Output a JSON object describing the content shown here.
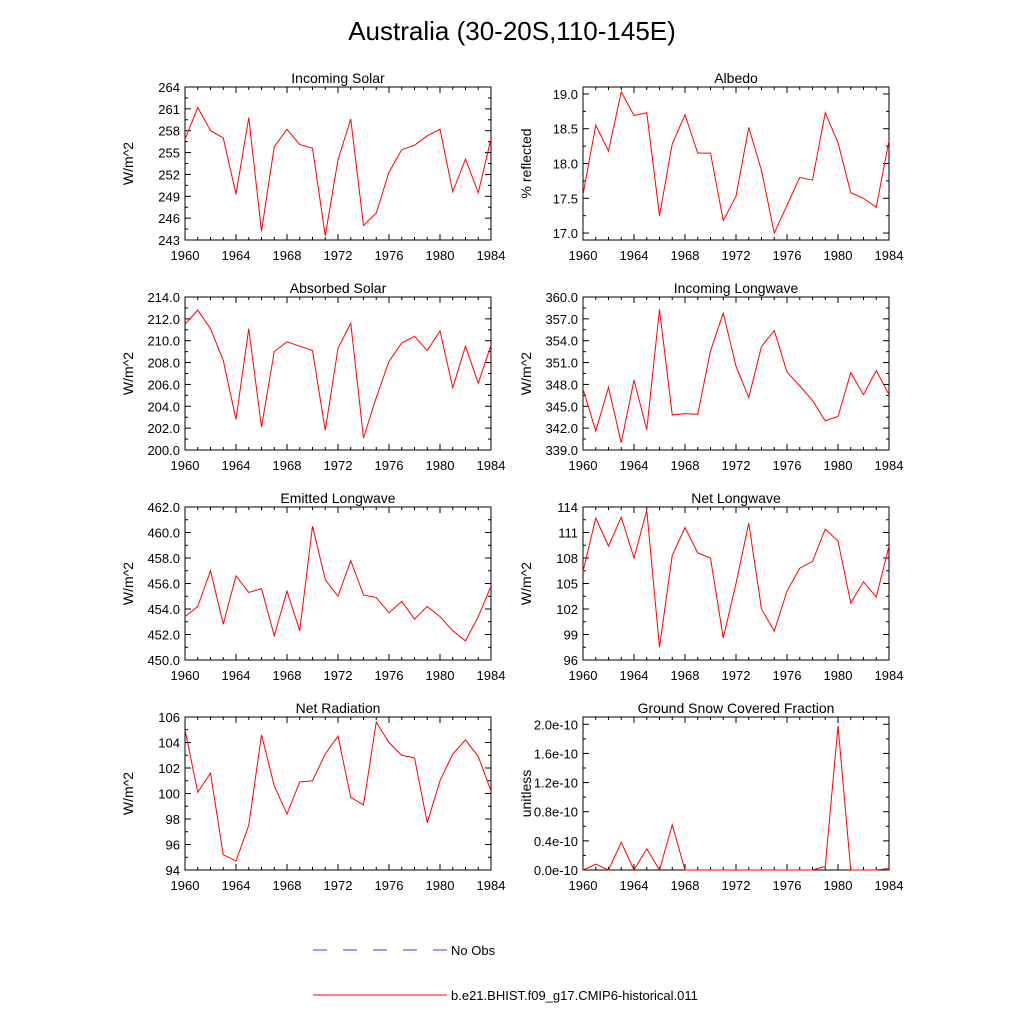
{
  "title": "Australia (30-20S,110-145E)",
  "legend": {
    "obs_label": "No Obs",
    "model_label": "b.e21.BHIST.f09_g17.CMIP6-historical.011",
    "obs_color": "#3b3bd6",
    "model_color": "#ff0000"
  },
  "chart_data": [
    {
      "type": "line",
      "title": "Incoming Solar",
      "ylabel": "W/m^2",
      "xlim": [
        1960,
        1984
      ],
      "ylim": [
        243,
        264
      ],
      "xticks": [
        "1960",
        "1964",
        "1968",
        "1972",
        "1976",
        "1980",
        "1984"
      ],
      "yticks": [
        "243",
        "246",
        "249",
        "252",
        "255",
        "258",
        "261",
        "264"
      ],
      "x": [
        1960,
        1961,
        1962,
        1963,
        1964,
        1965,
        1966,
        1967,
        1968,
        1969,
        1970,
        1971,
        1972,
        1973,
        1974,
        1975,
        1976,
        1977,
        1978,
        1979,
        1980,
        1981,
        1982,
        1983,
        1984
      ],
      "series": [
        {
          "values": [
            256.8,
            261.2,
            258.0,
            257.0,
            249.3,
            259.8,
            244.2,
            255.8,
            258.2,
            256.1,
            255.6,
            243.6,
            254.0,
            259.6,
            245.0,
            246.7,
            252.3,
            255.4,
            256.0,
            257.3,
            258.2,
            249.6,
            254.1,
            249.5,
            256.9
          ]
        }
      ]
    },
    {
      "type": "line",
      "title": "Albedo",
      "ylabel": "% reflected",
      "xlim": [
        1960,
        1984
      ],
      "ylim": [
        16.9,
        19.1
      ],
      "xticks": [
        "1960",
        "1964",
        "1968",
        "1972",
        "1976",
        "1980",
        "1984"
      ],
      "yticks": [
        "17.0",
        "17.5",
        "18.0",
        "18.5",
        "19.0"
      ],
      "x": [
        1960,
        1961,
        1962,
        1963,
        1964,
        1965,
        1966,
        1967,
        1968,
        1969,
        1970,
        1971,
        1972,
        1973,
        1974,
        1975,
        1976,
        1977,
        1978,
        1979,
        1980,
        1981,
        1982,
        1983,
        1984
      ],
      "series": [
        {
          "values": [
            17.55,
            18.55,
            18.18,
            19.03,
            18.69,
            18.73,
            17.25,
            18.28,
            18.7,
            18.15,
            18.15,
            17.18,
            17.53,
            18.52,
            17.9,
            17.0,
            17.4,
            17.8,
            17.76,
            18.73,
            18.3,
            17.58,
            17.5,
            17.37,
            18.33
          ]
        }
      ]
    },
    {
      "type": "line",
      "title": "Absorbed Solar",
      "ylabel": "W/m^2",
      "xlim": [
        1960,
        1984
      ],
      "ylim": [
        200,
        214
      ],
      "xticks": [
        "1960",
        "1964",
        "1968",
        "1972",
        "1976",
        "1980",
        "1984"
      ],
      "yticks": [
        "200.0",
        "202.0",
        "204.0",
        "206.0",
        "208.0",
        "210.0",
        "212.0",
        "214.0"
      ],
      "x": [
        1960,
        1961,
        1962,
        1963,
        1964,
        1965,
        1966,
        1967,
        1968,
        1969,
        1970,
        1971,
        1972,
        1973,
        1974,
        1975,
        1976,
        1977,
        1978,
        1979,
        1980,
        1981,
        1982,
        1983,
        1984
      ],
      "series": [
        {
          "values": [
            211.5,
            212.8,
            211.1,
            208.2,
            202.8,
            211.1,
            202.1,
            209.0,
            209.9,
            209.5,
            209.1,
            201.8,
            209.3,
            211.6,
            201.1,
            204.8,
            208.1,
            209.8,
            210.4,
            209.1,
            210.9,
            205.7,
            209.5,
            206.1,
            209.6
          ]
        }
      ]
    },
    {
      "type": "line",
      "title": "Incoming Longwave",
      "ylabel": "W/m^2",
      "xlim": [
        1960,
        1984
      ],
      "ylim": [
        339,
        360
      ],
      "xticks": [
        "1960",
        "1964",
        "1968",
        "1972",
        "1976",
        "1980",
        "1984"
      ],
      "yticks": [
        "339.0",
        "342.0",
        "345.0",
        "348.0",
        "351.0",
        "354.0",
        "357.0",
        "360.0"
      ],
      "x": [
        1960,
        1961,
        1962,
        1963,
        1964,
        1965,
        1966,
        1967,
        1968,
        1969,
        1970,
        1971,
        1972,
        1973,
        1974,
        1975,
        1976,
        1977,
        1978,
        1979,
        1980,
        1981,
        1982,
        1983,
        1984
      ],
      "series": [
        {
          "values": [
            347.4,
            341.6,
            347.6,
            340.0,
            348.6,
            341.8,
            358.3,
            343.8,
            344.0,
            343.9,
            352.6,
            357.8,
            350.5,
            346.2,
            353.2,
            355.4,
            349.7,
            347.8,
            345.8,
            343.0,
            343.6,
            349.6,
            346.6,
            349.9,
            346.6
          ]
        }
      ]
    },
    {
      "type": "line",
      "title": "Emitted Longwave",
      "ylabel": "W/m^2",
      "xlim": [
        1960,
        1984
      ],
      "ylim": [
        450,
        462
      ],
      "xticks": [
        "1960",
        "1964",
        "1968",
        "1972",
        "1976",
        "1980",
        "1984"
      ],
      "yticks": [
        "450.0",
        "452.0",
        "454.0",
        "456.0",
        "458.0",
        "460.0",
        "462.0"
      ],
      "x": [
        1960,
        1961,
        1962,
        1963,
        1964,
        1965,
        1966,
        1967,
        1968,
        1969,
        1970,
        1971,
        1972,
        1973,
        1974,
        1975,
        1976,
        1977,
        1978,
        1979,
        1980,
        1981,
        1982,
        1983,
        1984
      ],
      "series": [
        {
          "values": [
            453.4,
            454.2,
            457.0,
            452.8,
            456.6,
            455.3,
            455.6,
            451.9,
            455.4,
            452.3,
            460.5,
            456.3,
            455.0,
            457.8,
            455.1,
            454.9,
            453.7,
            454.6,
            453.2,
            454.2,
            453.4,
            452.3,
            451.5,
            453.4,
            455.8
          ]
        }
      ]
    },
    {
      "type": "line",
      "title": "Net Longwave",
      "ylabel": "W/m^2",
      "xlim": [
        1960,
        1984
      ],
      "ylim": [
        96,
        114
      ],
      "xticks": [
        "1960",
        "1964",
        "1968",
        "1972",
        "1976",
        "1980",
        "1984"
      ],
      "yticks": [
        "96",
        "99",
        "102",
        "105",
        "108",
        "111",
        "114"
      ],
      "x": [
        1960,
        1961,
        1962,
        1963,
        1964,
        1965,
        1966,
        1967,
        1968,
        1969,
        1970,
        1971,
        1972,
        1973,
        1974,
        1975,
        1976,
        1977,
        1978,
        1979,
        1980,
        1981,
        1982,
        1983,
        1984
      ],
      "series": [
        {
          "values": [
            106.4,
            112.7,
            109.4,
            112.8,
            108.0,
            113.6,
            97.5,
            108.3,
            111.6,
            108.6,
            108.0,
            98.6,
            105.0,
            112.1,
            102.0,
            99.4,
            104.1,
            106.8,
            107.6,
            111.4,
            110.0,
            102.7,
            105.2,
            103.4,
            109.4
          ]
        }
      ]
    },
    {
      "type": "line",
      "title": "Net Radiation",
      "ylabel": "W/m^2",
      "xlim": [
        1960,
        1984
      ],
      "ylim": [
        94,
        106
      ],
      "xticks": [
        "1960",
        "1964",
        "1968",
        "1972",
        "1976",
        "1980",
        "1984"
      ],
      "yticks": [
        "94",
        "96",
        "98",
        "100",
        "102",
        "104",
        "106"
      ],
      "x": [
        1960,
        1961,
        1962,
        1963,
        1964,
        1965,
        1966,
        1967,
        1968,
        1969,
        1970,
        1971,
        1972,
        1973,
        1974,
        1975,
        1976,
        1977,
        1978,
        1979,
        1980,
        1981,
        1982,
        1983,
        1984
      ],
      "series": [
        {
          "values": [
            105.0,
            100.1,
            101.6,
            95.2,
            94.7,
            97.5,
            104.6,
            100.6,
            98.4,
            100.9,
            101.0,
            103.1,
            104.5,
            99.7,
            99.1,
            105.6,
            104.0,
            103.0,
            102.8,
            97.7,
            101.0,
            103.1,
            104.2,
            102.9,
            100.2
          ]
        }
      ]
    },
    {
      "type": "line",
      "title": "Ground Snow Covered Fraction",
      "ylabel": "unitless",
      "xlim": [
        1960,
        1984
      ],
      "ylim": [
        0,
        2.1e-10
      ],
      "xticks": [
        "1960",
        "1964",
        "1968",
        "1972",
        "1976",
        "1980",
        "1984"
      ],
      "yticks": [
        "0.0e-10",
        "0.4e-10",
        "0.8e-10",
        "1.2e-10",
        "1.6e-10",
        "2.0e-10"
      ],
      "ytick_values": [
        0,
        4e-11,
        8e-11,
        1.2e-10,
        1.6e-10,
        2e-10
      ],
      "x": [
        1960,
        1961,
        1962,
        1963,
        1964,
        1965,
        1966,
        1967,
        1968,
        1969,
        1970,
        1971,
        1972,
        1973,
        1974,
        1975,
        1976,
        1977,
        1978,
        1979,
        1980,
        1981,
        1982,
        1983,
        1984
      ],
      "series": [
        {
          "values": [
            0,
            8e-12,
            0,
            3.8e-11,
            0,
            2.9e-11,
            0,
            6.2e-11,
            0,
            0,
            0,
            0,
            0,
            0,
            0,
            0,
            0,
            0,
            0,
            5e-12,
            1.98e-10,
            0,
            0,
            0,
            2e-12
          ]
        }
      ]
    }
  ]
}
